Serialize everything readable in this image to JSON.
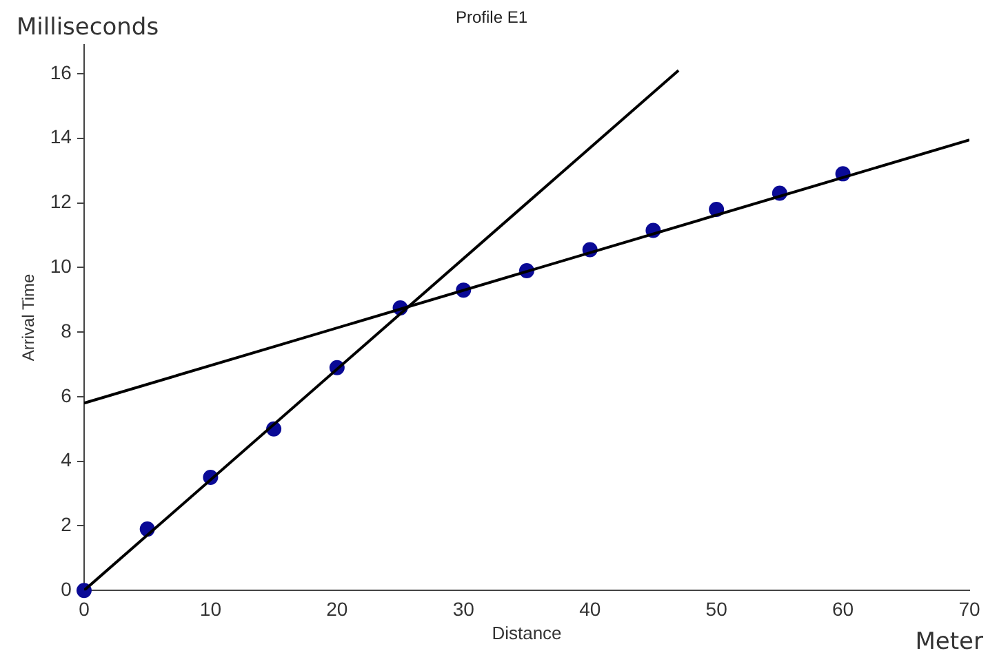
{
  "chart_data": {
    "type": "scatter",
    "title": "Profile E1",
    "xlabel": "Distance",
    "ylabel": "Arrival Time",
    "annotations": [
      "Milliseconds",
      "Meter"
    ],
    "xlim": [
      0,
      70
    ],
    "xticks": [
      0,
      10,
      20,
      30,
      40,
      50,
      60,
      70
    ],
    "ylim": [
      0,
      16.9
    ],
    "yticks": [
      0,
      2,
      4,
      6,
      8,
      10,
      12,
      14,
      16
    ],
    "grid": false,
    "legend": false,
    "series": [
      {
        "color": "#0a0a96",
        "marker": "circle",
        "x": [
          0,
          5,
          10,
          15,
          20,
          25,
          30,
          35,
          40,
          45,
          50,
          55,
          60
        ],
        "values": [
          0,
          1.9,
          3.5,
          5.0,
          6.9,
          8.75,
          9.3,
          9.9,
          10.55,
          11.15,
          11.8,
          12.3,
          12.9
        ]
      },
      {
        "type": "line",
        "color": "#000000",
        "marker": "none",
        "x": [
          0,
          47
        ],
        "values": [
          0,
          16.1
        ]
      },
      {
        "type": "line",
        "color": "#000000",
        "marker": "none",
        "x": [
          0,
          70
        ],
        "values": [
          5.8,
          13.95
        ]
      }
    ]
  }
}
